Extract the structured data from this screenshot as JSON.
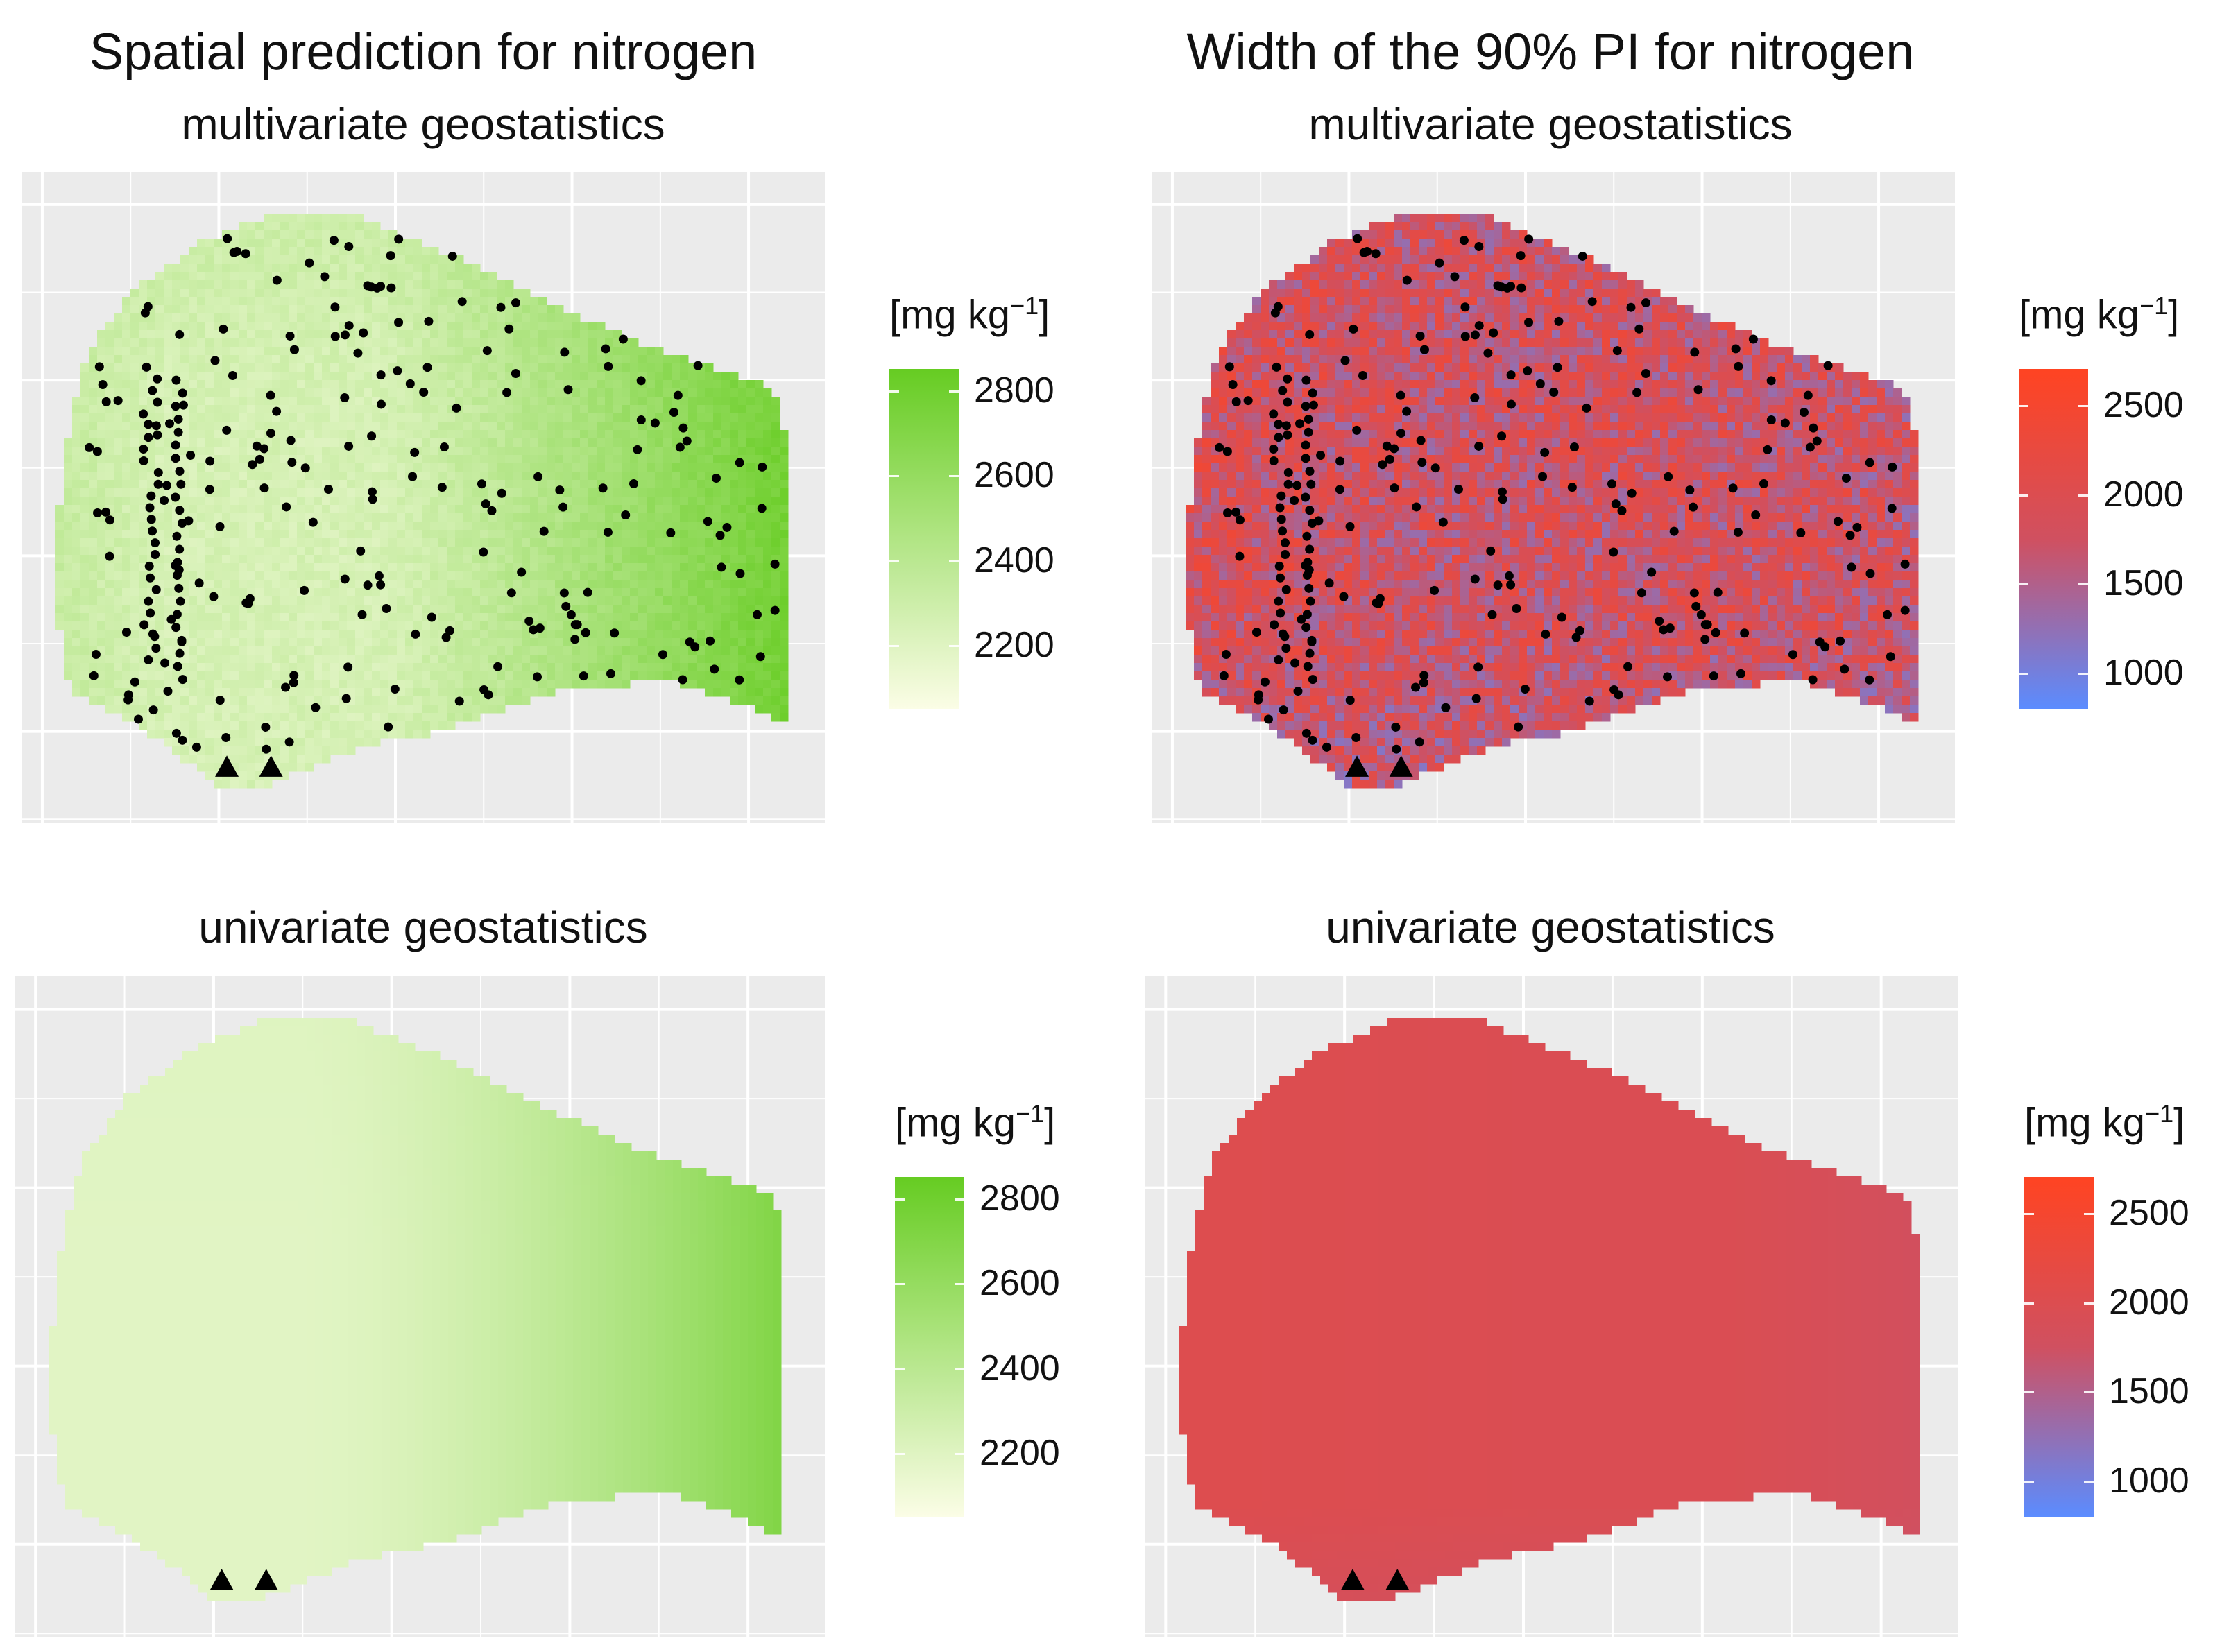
{
  "titles": {
    "left": "Spatial prediction for nitrogen",
    "right": "Width of the 90% PI for nitrogen"
  },
  "legend_title_base": "[mg kg",
  "legend_title_sup": "−1",
  "legend_title_end": "]",
  "chart_data": [
    {
      "type": "heatmap",
      "panel": "top-left",
      "title": "Spatial prediction for nitrogen",
      "subtitle": "multivariate geostatistics",
      "legend_ticks": [
        "2800",
        "2600",
        "2400",
        "2200"
      ],
      "legend_tick_values": [
        2800,
        2600,
        2400,
        2200
      ],
      "range": [
        2050,
        2850
      ],
      "colors": {
        "low": "#fbfde6",
        "high": "#66cc22"
      },
      "points_shown": true,
      "triangles_shown": true
    },
    {
      "type": "heatmap",
      "panel": "top-right",
      "title": "Width of the 90% PI for nitrogen",
      "subtitle": "multivariate geostatistics",
      "legend_ticks": [
        "2500",
        "2000",
        "1500",
        "1000"
      ],
      "legend_tick_values": [
        2500,
        2000,
        1500,
        1000
      ],
      "range": [
        800,
        2700
      ],
      "colors": {
        "low": "#5b8cff",
        "mid": "#d05060",
        "high": "#ff4422"
      },
      "points_shown": true,
      "triangles_shown": true
    },
    {
      "type": "heatmap",
      "panel": "bottom-left",
      "subtitle": "univariate geostatistics",
      "legend_ticks": [
        "2800",
        "2600",
        "2400",
        "2200"
      ],
      "legend_tick_values": [
        2800,
        2600,
        2400,
        2200
      ],
      "range": [
        2050,
        2850
      ],
      "colors": {
        "low": "#fbfde6",
        "high": "#66cc22"
      },
      "points_shown": false,
      "triangles_shown": true
    },
    {
      "type": "heatmap",
      "panel": "bottom-right",
      "subtitle": "univariate geostatistics",
      "legend_ticks": [
        "2500",
        "2000",
        "1500",
        "1000"
      ],
      "legend_tick_values": [
        2500,
        2000,
        1500,
        1000
      ],
      "range": [
        800,
        2700
      ],
      "colors": {
        "low": "#5b8cff",
        "mid": "#d05060",
        "high": "#ff4422"
      },
      "points_shown": false,
      "triangles_shown": true
    }
  ]
}
